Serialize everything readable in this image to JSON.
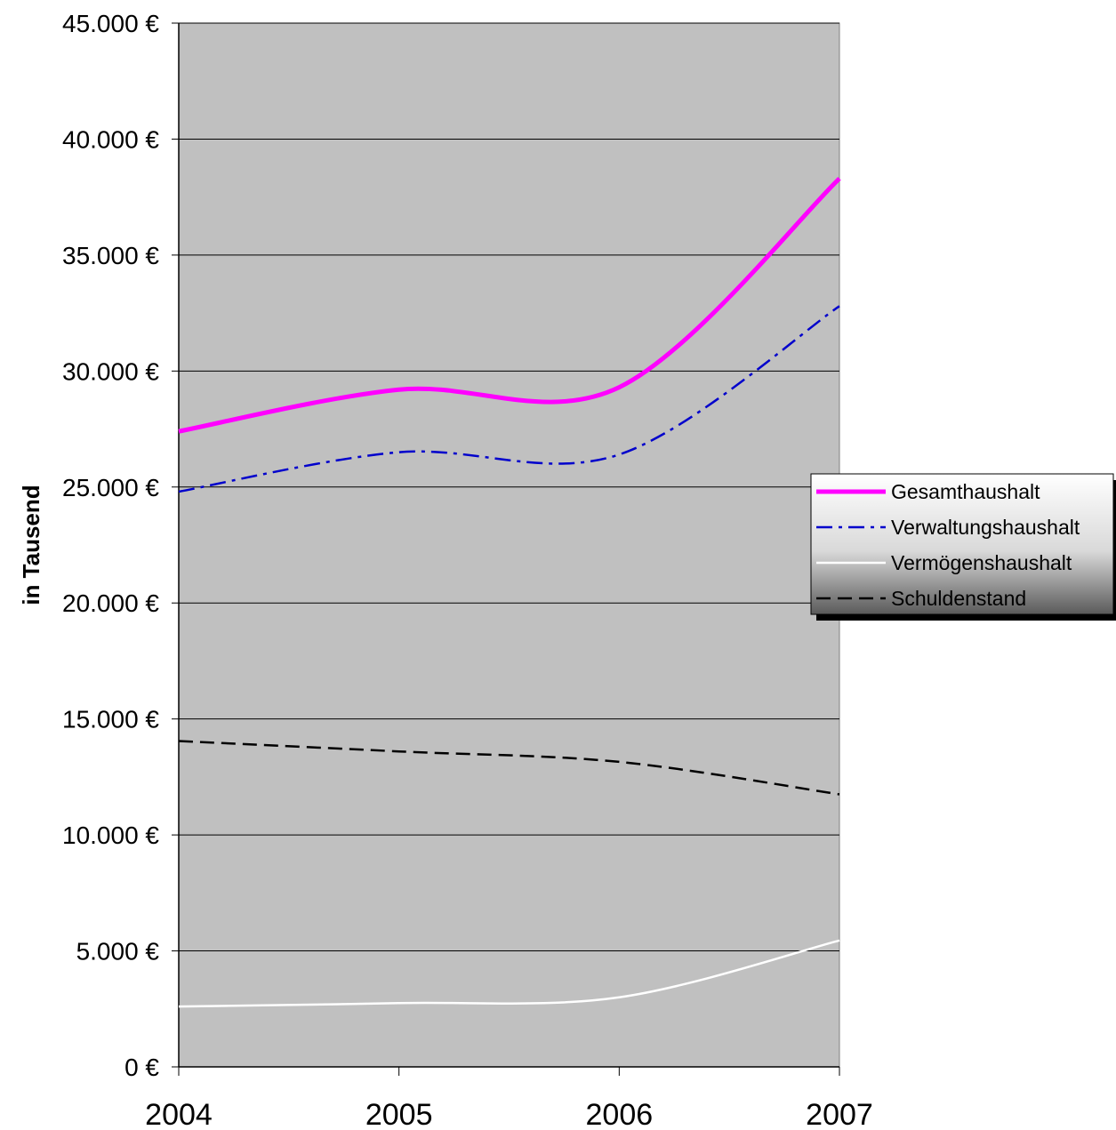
{
  "chart_data": {
    "type": "line",
    "title": "",
    "xlabel": "",
    "ylabel": "in Tausend",
    "categories": [
      "2004",
      "2005",
      "2006",
      "2007"
    ],
    "ylim": [
      0,
      45000
    ],
    "yticks": [
      0,
      5000,
      10000,
      15000,
      20000,
      25000,
      30000,
      35000,
      40000,
      45000
    ],
    "ytick_labels": [
      "0 €",
      "5.000 €",
      "10.000 €",
      "15.000 €",
      "20.000 €",
      "25.000 €",
      "30.000 €",
      "35.000 €",
      "40.000 €",
      "45.000 €"
    ],
    "grid": true,
    "legend_position": "right",
    "plot_background": "#c0c0c0",
    "series": [
      {
        "name": "Gesamthaushalt",
        "values": [
          27400,
          29200,
          29300,
          38300
        ],
        "color": "#ff00ff",
        "style": "solid-thick"
      },
      {
        "name": "Verwaltungshaushalt",
        "values": [
          24800,
          26500,
          26400,
          32800
        ],
        "color": "#0000cc",
        "style": "dash-dot"
      },
      {
        "name": "Vermögenshaushalt",
        "values": [
          2600,
          2750,
          3000,
          5450
        ],
        "color": "#ffffff",
        "style": "solid"
      },
      {
        "name": "Schuldenstand",
        "values": [
          14050,
          13600,
          13150,
          11750
        ],
        "color": "#000000",
        "style": "dashed"
      }
    ]
  }
}
